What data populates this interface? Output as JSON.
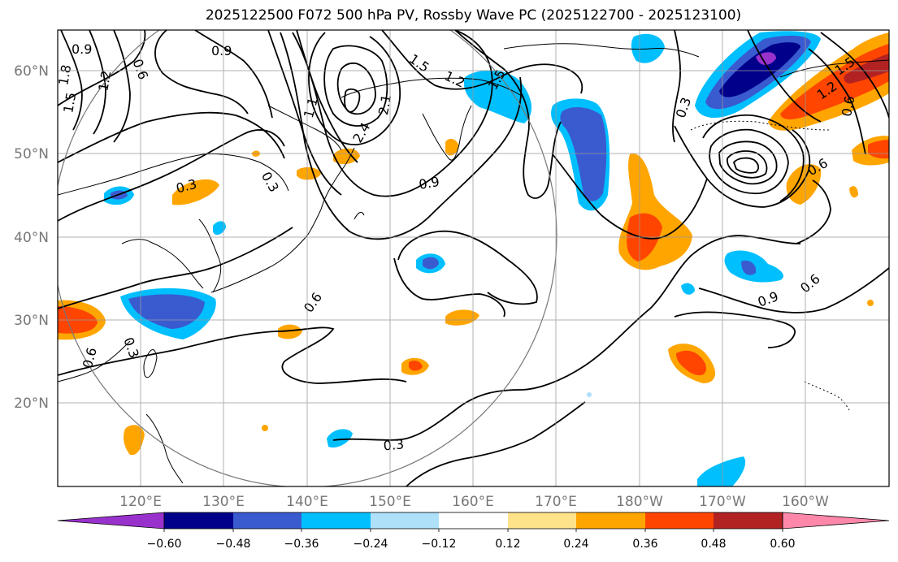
{
  "title": "2025122500 F072 500 hPa PV, Rossby Wave PC (2025122700 - 2025123100)",
  "map": {
    "lat_labels": [
      "60°N",
      "50°N",
      "40°N",
      "30°N",
      "20°N"
    ],
    "lon_labels": [
      "120°E",
      "130°E",
      "140°E",
      "150°E",
      "160°E",
      "170°E",
      "180°W",
      "170°W",
      "160°W"
    ],
    "contour_labels": [
      "0.9",
      "0.9",
      "0.6",
      "1.2",
      "1.5",
      "1.8",
      "1.5",
      "1.2",
      "2.1",
      "2.4",
      "1.1",
      "1.5",
      "0.3",
      "0.3",
      "0.9",
      "0.6",
      "0.3",
      "0.6",
      "0.3",
      "0.3",
      "0.9",
      "0.6",
      "0.6",
      "1.5",
      "1.2",
      "0.6"
    ],
    "colorbar": {
      "labels": [
        "−0.60",
        "−0.48",
        "−0.36",
        "−0.24",
        "−0.12",
        "0.12",
        "0.24",
        "0.36",
        "0.48",
        "0.60"
      ],
      "colors": [
        "#9932cc",
        "#00008b",
        "#3a5bd0",
        "#00bfff",
        "#aee0fa",
        "#ffffff",
        "#ffe38a",
        "#ffa500",
        "#ff4500",
        "#b22222",
        "#ff88aa"
      ]
    },
    "shading_colors": {
      "neg_light": "#aee0fa",
      "neg_mid": "#00bfff",
      "neg_strong": "#3a5bd0",
      "neg_deep": "#00008b",
      "neg_extreme": "#9932cc",
      "pos_light": "#ffe38a",
      "pos_mid": "#ffa500",
      "pos_strong": "#ff4500",
      "pos_deep": "#b22222"
    }
  }
}
